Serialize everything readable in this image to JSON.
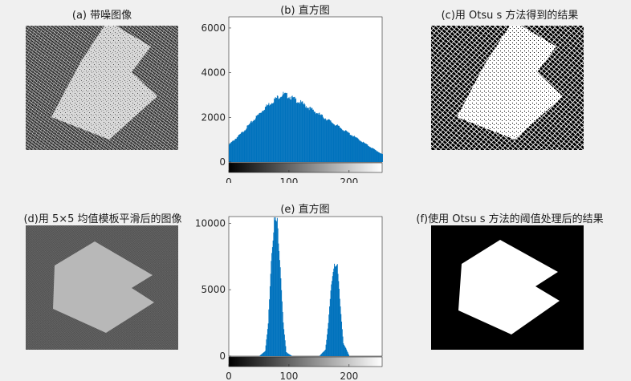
{
  "titles": {
    "a": "(a) 带噪图像",
    "b": "(b) 直方图",
    "c": "(c)用 Otsu s 方法得到的结果",
    "d": "(d)用 5×5 均值模板平滑后的图像",
    "e": "(e) 直方图",
    "f": "(f)使用 Otsu s 方法的阈值处理后的结果"
  },
  "chart_data": [
    {
      "type": "bar",
      "title": "(b) 直方图",
      "xlim": [
        0,
        255
      ],
      "ylim": [
        0,
        6500
      ],
      "xticks": [
        0,
        100,
        200
      ],
      "yticks": [
        0,
        2000,
        4000,
        6000
      ],
      "colorbar": "grayscale 0-255",
      "x": [
        0,
        20,
        40,
        60,
        80,
        90,
        100,
        120,
        140,
        160,
        180,
        200,
        220,
        240,
        255
      ],
      "values": [
        800,
        1300,
        1900,
        2500,
        2950,
        3100,
        3000,
        2700,
        2350,
        2000,
        1650,
        1300,
        950,
        600,
        350
      ]
    },
    {
      "type": "bar",
      "title": "(e) 直方图",
      "xlim": [
        0,
        255
      ],
      "ylim": [
        0,
        10500
      ],
      "xticks": [
        0,
        100,
        200
      ],
      "yticks": [
        0,
        5000,
        10000
      ],
      "colorbar": "grayscale 0-255",
      "x": [
        50,
        60,
        65,
        70,
        75,
        80,
        85,
        90,
        95,
        105,
        150,
        160,
        165,
        170,
        175,
        180,
        185,
        190,
        200
      ],
      "values": [
        0,
        400,
        2500,
        7500,
        10400,
        10300,
        7000,
        2500,
        300,
        0,
        0,
        500,
        2500,
        5500,
        7200,
        6800,
        3800,
        1000,
        0
      ]
    }
  ]
}
